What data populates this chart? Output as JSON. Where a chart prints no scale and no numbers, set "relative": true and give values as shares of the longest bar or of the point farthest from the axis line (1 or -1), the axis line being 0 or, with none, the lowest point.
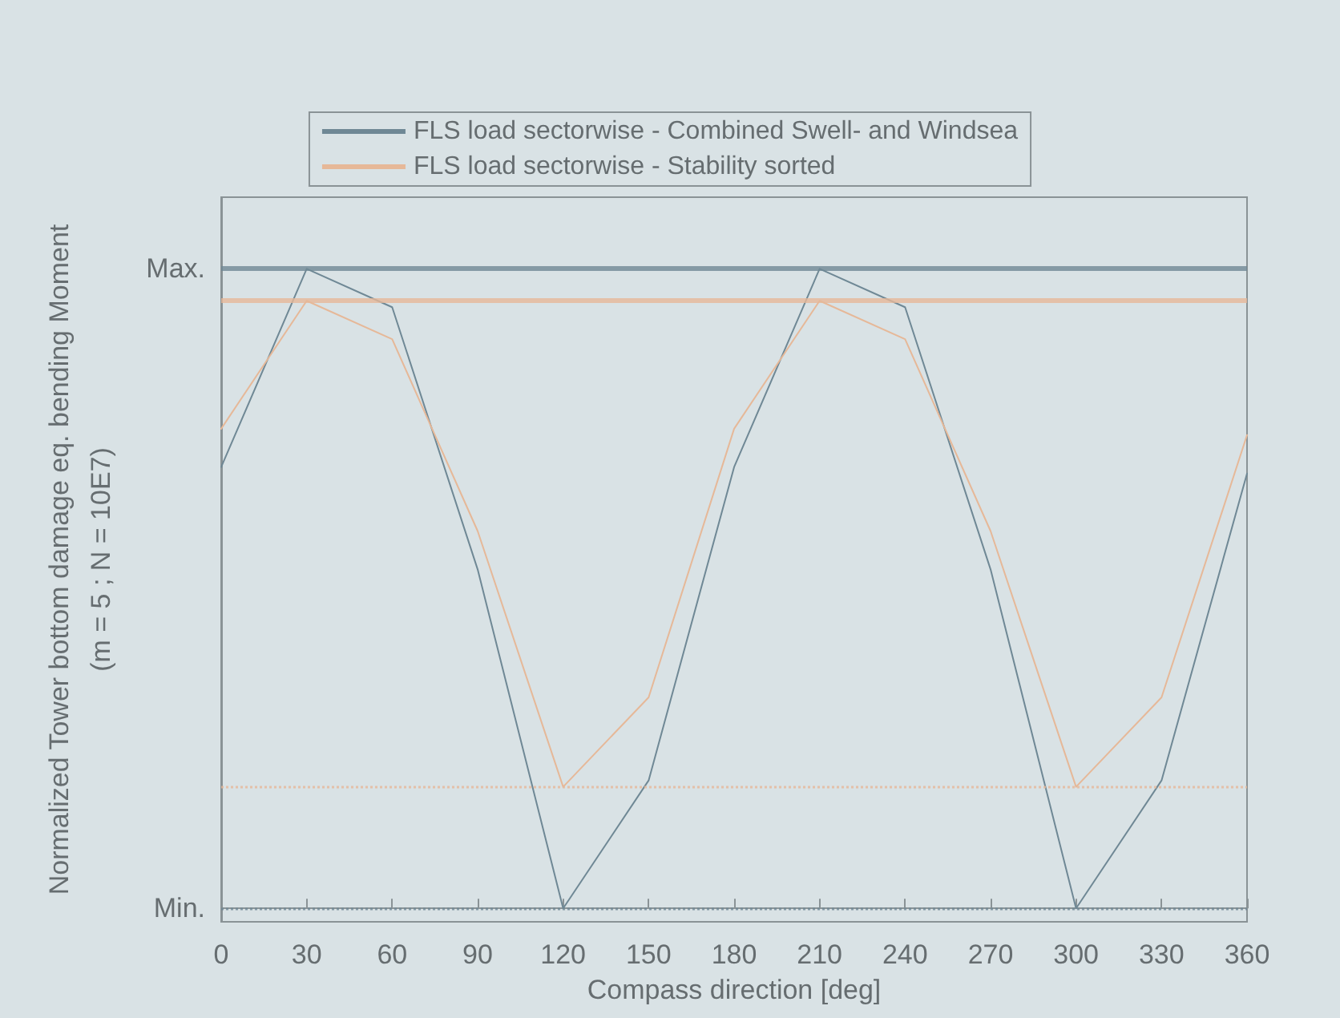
{
  "chart_data": {
    "type": "line",
    "xlabel": "Compass direction [deg]",
    "ylabel": "Normalized Tower bottom damage eq. bending Moment\n(m = 5 ; N = 10E7)",
    "x": [
      0,
      30,
      60,
      90,
      120,
      150,
      180,
      210,
      240,
      270,
      300,
      330,
      360
    ],
    "series": [
      {
        "name": "FLS load sectorwise - Combined Swell- and Windsea",
        "color": "#6f8895",
        "values": [
          0.69,
          1.0,
          0.94,
          0.53,
          0.0,
          0.2,
          0.69,
          1.0,
          0.94,
          0.53,
          0.0,
          0.2,
          0.68
        ]
      },
      {
        "name": "FLS load sectorwise - Stability sorted",
        "color": "#e6b898",
        "values": [
          0.75,
          0.95,
          0.89,
          0.59,
          0.19,
          0.33,
          0.75,
          0.95,
          0.89,
          0.59,
          0.19,
          0.33,
          0.74
        ]
      }
    ],
    "xlim": [
      0,
      360
    ],
    "xticks": [
      0,
      30,
      60,
      90,
      120,
      150,
      180,
      210,
      240,
      270,
      300,
      330,
      360
    ],
    "relative": true,
    "annotations": [
      "Max.",
      "Min."
    ],
    "ref_lines": [
      {
        "axis": "y",
        "value": 1,
        "color": "#6f8895",
        "line_style": "solid"
      },
      {
        "axis": "y",
        "value": 0.95,
        "color": "#e6b898",
        "line_style": "solid"
      },
      {
        "axis": "y",
        "value": 0.19,
        "color": "#e6b898",
        "line_style": "dotted"
      },
      {
        "axis": "y",
        "value": 0,
        "color": "#6f8895",
        "line_style": "dotted"
      }
    ],
    "grid": false,
    "legend": "top",
    "marker": "none",
    "line_style": "solid"
  }
}
